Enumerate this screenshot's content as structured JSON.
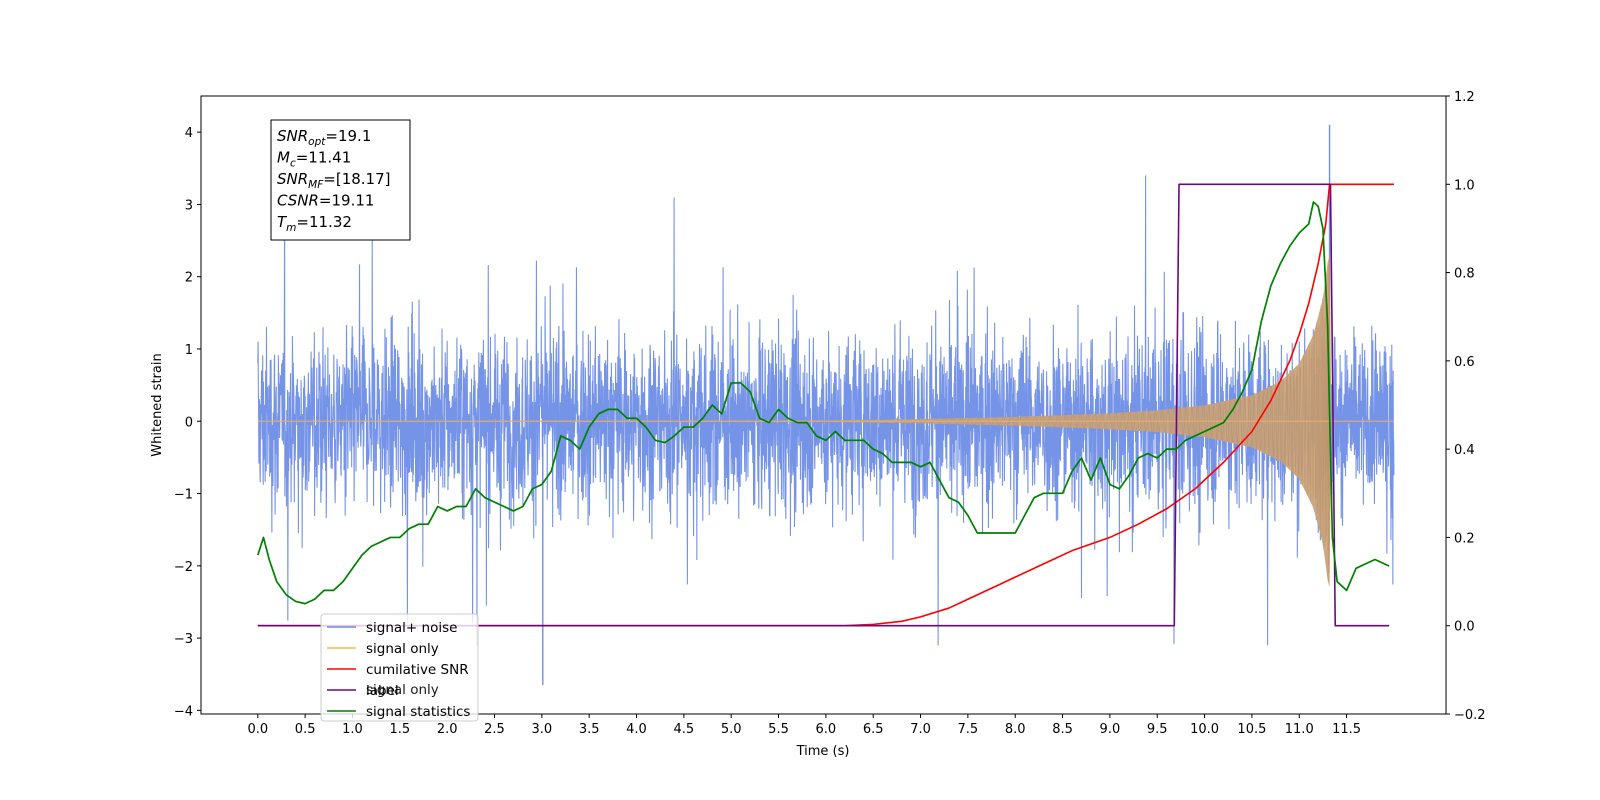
{
  "chart_data": {
    "type": "line",
    "xlabel": "Time (s)",
    "ylabel": "Whitened strain",
    "xlim": [
      -0.6,
      12.55
    ],
    "ylim": [
      -4.05,
      4.5
    ],
    "y2lim": [
      -0.2,
      1.2
    ],
    "xticks": [
      0.0,
      0.5,
      1.0,
      1.5,
      2.0,
      2.5,
      3.0,
      3.5,
      4.0,
      4.5,
      5.0,
      5.5,
      6.0,
      6.5,
      7.0,
      7.5,
      8.0,
      8.5,
      9.0,
      9.5,
      10.0,
      10.5,
      11.0,
      11.5
    ],
    "xtick_labels": [
      "0.0",
      "0.5",
      "1.0",
      "1.5",
      "2.0",
      "2.5",
      "3.0",
      "3.5",
      "4.0",
      "4.5",
      "5.0",
      "5.5",
      "6.0",
      "6.5",
      "7.0",
      "7.5",
      "8.0",
      "8.5",
      "9.0",
      "9.5",
      "10.0",
      "10.5",
      "11.0",
      "11.5"
    ],
    "yticks": [
      -4,
      -3,
      -2,
      -1,
      0,
      1,
      2,
      3,
      4
    ],
    "ytick_labels": [
      "−4",
      "−3",
      "−2",
      "−1",
      "0",
      "1",
      "2",
      "3",
      "4"
    ],
    "y2ticks": [
      -0.2,
      0.0,
      0.2,
      0.4,
      0.6,
      0.8,
      1.0,
      1.2
    ],
    "y2tick_labels": [
      "−0.2",
      "0.0",
      "0.2",
      "0.4",
      "0.6",
      "0.8",
      "1.0",
      "1.2"
    ],
    "grid": false,
    "legend_position": "lower-left",
    "info_box": {
      "lines": [
        {
          "base": "SNR",
          "sub": "opt",
          "value": "=19.1"
        },
        {
          "base": "M",
          "sub": "c",
          "value": "=11.41"
        },
        {
          "base": "SNR",
          "sub": "MF",
          "value": "=[18.17]"
        },
        {
          "base": "CSNR",
          "sub": "",
          "value": "=19.11"
        },
        {
          "base": "T",
          "sub": "m",
          "value": "=11.32"
        }
      ]
    },
    "legend": [
      {
        "label": "signal+ noise",
        "color": "#6f8ee6"
      },
      {
        "label": "signal only",
        "color": "#ffb84d"
      },
      {
        "label": "cumilative SNR",
        "color": "#ff0000"
      },
      {
        "label": "label",
        "color": "#6a0a7a"
      },
      {
        "label": "signal statistics",
        "color": "#008000"
      }
    ],
    "hidden_legend_text": "signal only",
    "series": [
      {
        "name": "signal+ noise",
        "axis": "left",
        "color": "#6f8ee6",
        "x_range": [
          0.0,
          12.0
        ],
        "typical_range": [
          -1.5,
          1.5
        ],
        "max_value": 4.1,
        "max_at": 11.32,
        "min_value": -3.65,
        "min_at": 3.01
      },
      {
        "name": "signal only",
        "axis": "left",
        "color": "#c9a27a",
        "x_range": [
          0.0,
          12.0
        ],
        "envelope": [
          [
            0.0,
            0.0
          ],
          [
            6.0,
            0.01
          ],
          [
            7.0,
            0.03
          ],
          [
            8.0,
            0.06
          ],
          [
            9.0,
            0.11
          ],
          [
            9.5,
            0.15
          ],
          [
            10.0,
            0.22
          ],
          [
            10.5,
            0.36
          ],
          [
            10.8,
            0.55
          ],
          [
            11.0,
            0.8
          ],
          [
            11.15,
            1.2
          ],
          [
            11.25,
            1.7
          ],
          [
            11.3,
            2.2
          ],
          [
            11.32,
            2.3
          ],
          [
            11.33,
            0.0
          ],
          [
            12.0,
            0.0
          ]
        ]
      },
      {
        "name": "cumilative SNR",
        "axis": "right",
        "color": "#ff0000",
        "x": [
          0.0,
          6.2,
          6.5,
          6.8,
          7.0,
          7.3,
          7.5,
          7.8,
          8.0,
          8.3,
          8.6,
          9.0,
          9.3,
          9.6,
          9.9,
          10.2,
          10.5,
          10.7,
          10.9,
          11.0,
          11.1,
          11.2,
          11.28,
          11.32,
          12.0
        ],
        "values": [
          0.0,
          0.0,
          0.003,
          0.01,
          0.02,
          0.04,
          0.06,
          0.09,
          0.11,
          0.14,
          0.17,
          0.2,
          0.23,
          0.265,
          0.31,
          0.37,
          0.44,
          0.51,
          0.6,
          0.66,
          0.73,
          0.82,
          0.91,
          1.0,
          1.0
        ]
      },
      {
        "name": "label",
        "axis": "right",
        "color": "#6a0a7a",
        "x": [
          0.0,
          9.68,
          9.73,
          11.33,
          11.38,
          11.95
        ],
        "values": [
          0.0,
          0.0,
          1.0,
          1.0,
          0.0,
          0.0
        ]
      },
      {
        "name": "signal statistics",
        "axis": "right",
        "color": "#008000",
        "x": [
          0.0,
          0.06,
          0.12,
          0.2,
          0.3,
          0.4,
          0.5,
          0.6,
          0.7,
          0.8,
          0.9,
          1.0,
          1.1,
          1.2,
          1.3,
          1.4,
          1.5,
          1.6,
          1.7,
          1.8,
          1.9,
          2.0,
          2.1,
          2.2,
          2.3,
          2.4,
          2.5,
          2.6,
          2.7,
          2.8,
          2.9,
          3.0,
          3.1,
          3.2,
          3.3,
          3.4,
          3.5,
          3.6,
          3.7,
          3.8,
          3.9,
          4.0,
          4.1,
          4.2,
          4.3,
          4.4,
          4.5,
          4.6,
          4.7,
          4.8,
          4.9,
          5.0,
          5.1,
          5.2,
          5.3,
          5.4,
          5.5,
          5.6,
          5.7,
          5.8,
          5.9,
          6.0,
          6.1,
          6.2,
          6.3,
          6.4,
          6.5,
          6.6,
          6.7,
          6.8,
          6.9,
          7.0,
          7.1,
          7.2,
          7.3,
          7.4,
          7.5,
          7.6,
          7.7,
          7.8,
          7.9,
          8.0,
          8.1,
          8.2,
          8.3,
          8.4,
          8.5,
          8.6,
          8.7,
          8.8,
          8.9,
          9.0,
          9.1,
          9.2,
          9.3,
          9.4,
          9.5,
          9.6,
          9.7,
          9.8,
          9.9,
          10.0,
          10.1,
          10.2,
          10.3,
          10.4,
          10.5,
          10.6,
          10.7,
          10.8,
          10.9,
          11.0,
          11.1,
          11.15,
          11.2,
          11.25,
          11.3,
          11.35,
          11.4,
          11.5,
          11.6,
          11.7,
          11.8,
          11.9,
          11.95
        ],
        "values": [
          0.16,
          0.2,
          0.15,
          0.1,
          0.07,
          0.055,
          0.05,
          0.06,
          0.08,
          0.08,
          0.1,
          0.13,
          0.16,
          0.18,
          0.19,
          0.2,
          0.2,
          0.22,
          0.23,
          0.23,
          0.27,
          0.26,
          0.27,
          0.27,
          0.31,
          0.29,
          0.28,
          0.27,
          0.26,
          0.27,
          0.31,
          0.32,
          0.35,
          0.43,
          0.42,
          0.4,
          0.45,
          0.48,
          0.49,
          0.49,
          0.47,
          0.47,
          0.45,
          0.42,
          0.415,
          0.43,
          0.45,
          0.45,
          0.47,
          0.5,
          0.48,
          0.55,
          0.55,
          0.53,
          0.47,
          0.46,
          0.49,
          0.47,
          0.46,
          0.46,
          0.43,
          0.42,
          0.44,
          0.42,
          0.42,
          0.42,
          0.4,
          0.39,
          0.37,
          0.37,
          0.37,
          0.36,
          0.37,
          0.33,
          0.29,
          0.28,
          0.25,
          0.21,
          0.21,
          0.21,
          0.21,
          0.21,
          0.25,
          0.29,
          0.3,
          0.3,
          0.3,
          0.35,
          0.38,
          0.33,
          0.38,
          0.32,
          0.31,
          0.34,
          0.38,
          0.39,
          0.38,
          0.4,
          0.4,
          0.42,
          0.43,
          0.44,
          0.45,
          0.46,
          0.49,
          0.53,
          0.58,
          0.69,
          0.77,
          0.82,
          0.86,
          0.89,
          0.91,
          0.96,
          0.95,
          0.9,
          0.68,
          0.2,
          0.1,
          0.08,
          0.13,
          0.14,
          0.15,
          0.14,
          0.135
        ]
      }
    ]
  }
}
